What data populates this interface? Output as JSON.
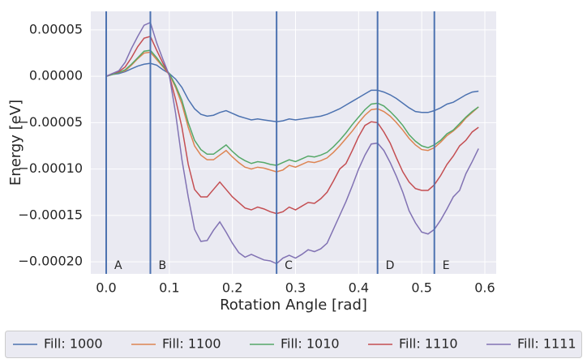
{
  "chart_data": {
    "type": "line",
    "xlabel": "Rotation Angle [rad]",
    "ylabel": "Energy [eV]",
    "x": [
      0,
      0.01,
      0.02,
      0.03,
      0.04,
      0.05,
      0.06,
      0.07,
      0.08,
      0.09,
      0.1,
      0.11,
      0.12,
      0.13,
      0.14,
      0.15,
      0.16,
      0.17,
      0.18,
      0.19,
      0.2,
      0.21,
      0.22,
      0.23,
      0.24,
      0.25,
      0.26,
      0.27,
      0.28,
      0.29,
      0.3,
      0.31,
      0.32,
      0.33,
      0.34,
      0.35,
      0.36,
      0.37,
      0.38,
      0.39,
      0.4,
      0.41,
      0.42,
      0.43,
      0.44,
      0.45,
      0.46,
      0.47,
      0.48,
      0.49,
      0.5,
      0.51,
      0.52,
      0.53,
      0.54,
      0.55,
      0.56,
      0.57,
      0.58,
      0.59
    ],
    "series": [
      {
        "name": "Fill: 1000",
        "color": "#4c72b0",
        "values": [
          0,
          2e-06,
          3e-06,
          5e-06,
          8e-06,
          1.1e-05,
          1.3e-05,
          1.4e-05,
          1.2e-05,
          7e-06,
          3e-06,
          -3e-06,
          -1.2e-05,
          -2.5e-05,
          -3.5e-05,
          -4.1e-05,
          -4.3e-05,
          -4.2e-05,
          -3.9e-05,
          -3.7e-05,
          -4e-05,
          -4.3e-05,
          -4.5e-05,
          -4.7e-05,
          -4.6e-05,
          -4.7e-05,
          -4.8e-05,
          -4.9e-05,
          -4.8e-05,
          -4.6e-05,
          -4.7e-05,
          -4.6e-05,
          -4.5e-05,
          -4.4e-05,
          -4.3e-05,
          -4.1e-05,
          -3.8e-05,
          -3.5e-05,
          -3.1e-05,
          -2.7e-05,
          -2.3e-05,
          -1.9e-05,
          -1.5e-05,
          -1.5e-05,
          -1.7e-05,
          -2e-05,
          -2.4e-05,
          -2.9e-05,
          -3.4e-05,
          -3.8e-05,
          -3.9e-05,
          -3.9e-05,
          -3.7e-05,
          -3.4e-05,
          -3e-05,
          -2.8e-05,
          -2.4e-05,
          -2e-05,
          -1.7e-05,
          -1.6e-05
        ]
      },
      {
        "name": "Fill: 1100",
        "color": "#dd8452",
        "values": [
          0,
          2e-06,
          4e-06,
          6e-06,
          1.2e-05,
          1.9e-05,
          2.5e-05,
          2.6e-05,
          1.8e-05,
          1e-05,
          2e-06,
          -1.2e-05,
          -3e-05,
          -5.5e-05,
          -7.5e-05,
          -8.5e-05,
          -9e-05,
          -9e-05,
          -8.5e-05,
          -8e-05,
          -8.7e-05,
          -9.3e-05,
          -9.8e-05,
          -0.0001,
          -9.8e-05,
          -9.9e-05,
          -0.000101,
          -0.000103,
          -0.000101,
          -9.6e-05,
          -9.8e-05,
          -9.5e-05,
          -9.2e-05,
          -9.3e-05,
          -9.1e-05,
          -8.8e-05,
          -8.2e-05,
          -7.5e-05,
          -6.7e-05,
          -5.9e-05,
          -5e-05,
          -4.2e-05,
          -3.6e-05,
          -3.5e-05,
          -3.8e-05,
          -4.3e-05,
          -5e-05,
          -5.8e-05,
          -6.7e-05,
          -7.4e-05,
          -7.9e-05,
          -8e-05,
          -7.7e-05,
          -7.1e-05,
          -6.4e-05,
          -5.9e-05,
          -5.3e-05,
          -4.5e-05,
          -3.9e-05,
          -3.3e-05
        ]
      },
      {
        "name": "Fill: 1010",
        "color": "#55a868",
        "values": [
          0,
          2e-06,
          4e-06,
          7e-06,
          1.3e-05,
          2e-05,
          2.7e-05,
          2.8e-05,
          2e-05,
          1.1e-05,
          3e-06,
          -1e-05,
          -2.6e-05,
          -5e-05,
          -6.9e-05,
          -7.9e-05,
          -8.4e-05,
          -8.4e-05,
          -7.9e-05,
          -7.4e-05,
          -8.1e-05,
          -8.7e-05,
          -9.1e-05,
          -9.4e-05,
          -9.2e-05,
          -9.3e-05,
          -9.5e-05,
          -9.6e-05,
          -9.3e-05,
          -9e-05,
          -9.2e-05,
          -8.9e-05,
          -8.6e-05,
          -8.7e-05,
          -8.5e-05,
          -8.2e-05,
          -7.6e-05,
          -6.9e-05,
          -6.1e-05,
          -5.2e-05,
          -4.4e-05,
          -3.6e-05,
          -3e-05,
          -2.9e-05,
          -3.2e-05,
          -3.8e-05,
          -4.5e-05,
          -5.3e-05,
          -6.3e-05,
          -7e-05,
          -7.5e-05,
          -7.7e-05,
          -7.4e-05,
          -6.9e-05,
          -6.2e-05,
          -5.8e-05,
          -5.1e-05,
          -4.4e-05,
          -3.8e-05,
          -3.3e-05
        ]
      },
      {
        "name": "Fill: 1110",
        "color": "#c44e52",
        "values": [
          0,
          3e-06,
          5e-06,
          1e-05,
          2e-05,
          3.2e-05,
          4.1e-05,
          4.3e-05,
          2.8e-05,
          1.4e-05,
          1e-06,
          -2.5e-05,
          -5.5e-05,
          -9.5e-05,
          -0.000122,
          -0.00013,
          -0.00013,
          -0.000122,
          -0.000114,
          -0.000122,
          -0.00013,
          -0.000136,
          -0.000142,
          -0.000144,
          -0.000141,
          -0.000143,
          -0.000146,
          -0.000148,
          -0.000146,
          -0.000141,
          -0.000144,
          -0.00014,
          -0.000136,
          -0.000137,
          -0.000132,
          -0.000125,
          -0.000113,
          -0.0001,
          -9.4e-05,
          -8e-05,
          -6.5e-05,
          -5.3e-05,
          -4.9e-05,
          -5e-05,
          -6e-05,
          -7.2e-05,
          -8.8e-05,
          -0.000103,
          -0.000114,
          -0.000121,
          -0.000123,
          -0.000123,
          -0.000117,
          -0.000107,
          -9.5e-05,
          -8.6e-05,
          -7.5e-05,
          -6.9e-05,
          -6e-05,
          -5.5e-05
        ]
      },
      {
        "name": "Fill: 1111",
        "color": "#8172b3",
        "values": [
          0,
          3e-06,
          6e-06,
          1.5e-05,
          3e-05,
          4.3e-05,
          5.5e-05,
          5.8e-05,
          3.6e-05,
          1.8e-05,
          1e-06,
          -4e-05,
          -9e-05,
          -0.00013,
          -0.000165,
          -0.000178,
          -0.000177,
          -0.000166,
          -0.000157,
          -0.000168,
          -0.00018,
          -0.00019,
          -0.000195,
          -0.000192,
          -0.000195,
          -0.000198,
          -0.000199,
          -0.000202,
          -0.000196,
          -0.000193,
          -0.000196,
          -0.000192,
          -0.000187,
          -0.000189,
          -0.000186,
          -0.00018,
          -0.000165,
          -0.00015,
          -0.000135,
          -0.000118,
          -0.0001,
          -8.5e-05,
          -7.3e-05,
          -7.2e-05,
          -8e-05,
          -9.3e-05,
          -0.000108,
          -0.000125,
          -0.000145,
          -0.000158,
          -0.000168,
          -0.00017,
          -0.000165,
          -0.000155,
          -0.000143,
          -0.00013,
          -0.000123,
          -0.000105,
          -9.2e-05,
          -7.8e-05
        ]
      }
    ],
    "annotations": [
      {
        "x": 0,
        "label": "A"
      },
      {
        "x": 0.07,
        "label": "B"
      },
      {
        "x": 0.27,
        "label": "C"
      },
      {
        "x": 0.43,
        "label": "D"
      },
      {
        "x": 0.52,
        "label": "E"
      }
    ],
    "annotation_color": "#4c72b0",
    "xlim": [
      -0.0244,
      0.618
    ],
    "ylim": [
      -0.000213,
      7e-05
    ],
    "xticks": [
      {
        "value": 0,
        "label": "0.0"
      },
      0.1,
      0.2,
      0.3,
      0.4,
      0.5,
      0.6
    ],
    "yticks": [
      {
        "value": 5e-05,
        "label": "0.00005"
      },
      {
        "value": 0,
        "label": "0.00000"
      },
      {
        "value": -5e-05,
        "label": "−0.00005"
      },
      {
        "value": -0.0001,
        "label": "−0.00010"
      },
      {
        "value": -0.00015,
        "label": "−0.00015"
      },
      {
        "value": -0.0002,
        "label": "−0.00020"
      }
    ],
    "grid": true,
    "legend": "bottom"
  }
}
